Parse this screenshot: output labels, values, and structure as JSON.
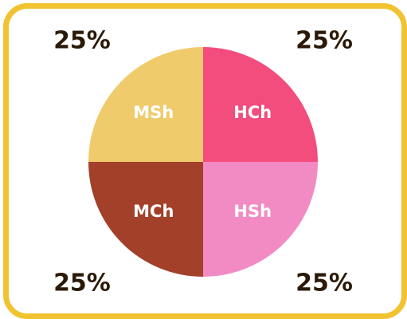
{
  "chart_data": {
    "type": "pie",
    "slices": [
      {
        "label": "HCh",
        "value": 25,
        "percent_label": "25%",
        "color": "#f24d7d"
      },
      {
        "label": "HSh",
        "value": 25,
        "percent_label": "25%",
        "color": "#f28bc3"
      },
      {
        "label": "MCh",
        "value": 25,
        "percent_label": "25%",
        "color": "#a3402a"
      },
      {
        "label": "MSh",
        "value": 25,
        "percent_label": "25%",
        "color": "#f0cb6c"
      }
    ],
    "title": "",
    "legend": "none"
  },
  "frame": {
    "border_color": "#f2c330",
    "text_color": "#2b1a08",
    "label_color": "#ffffff"
  }
}
